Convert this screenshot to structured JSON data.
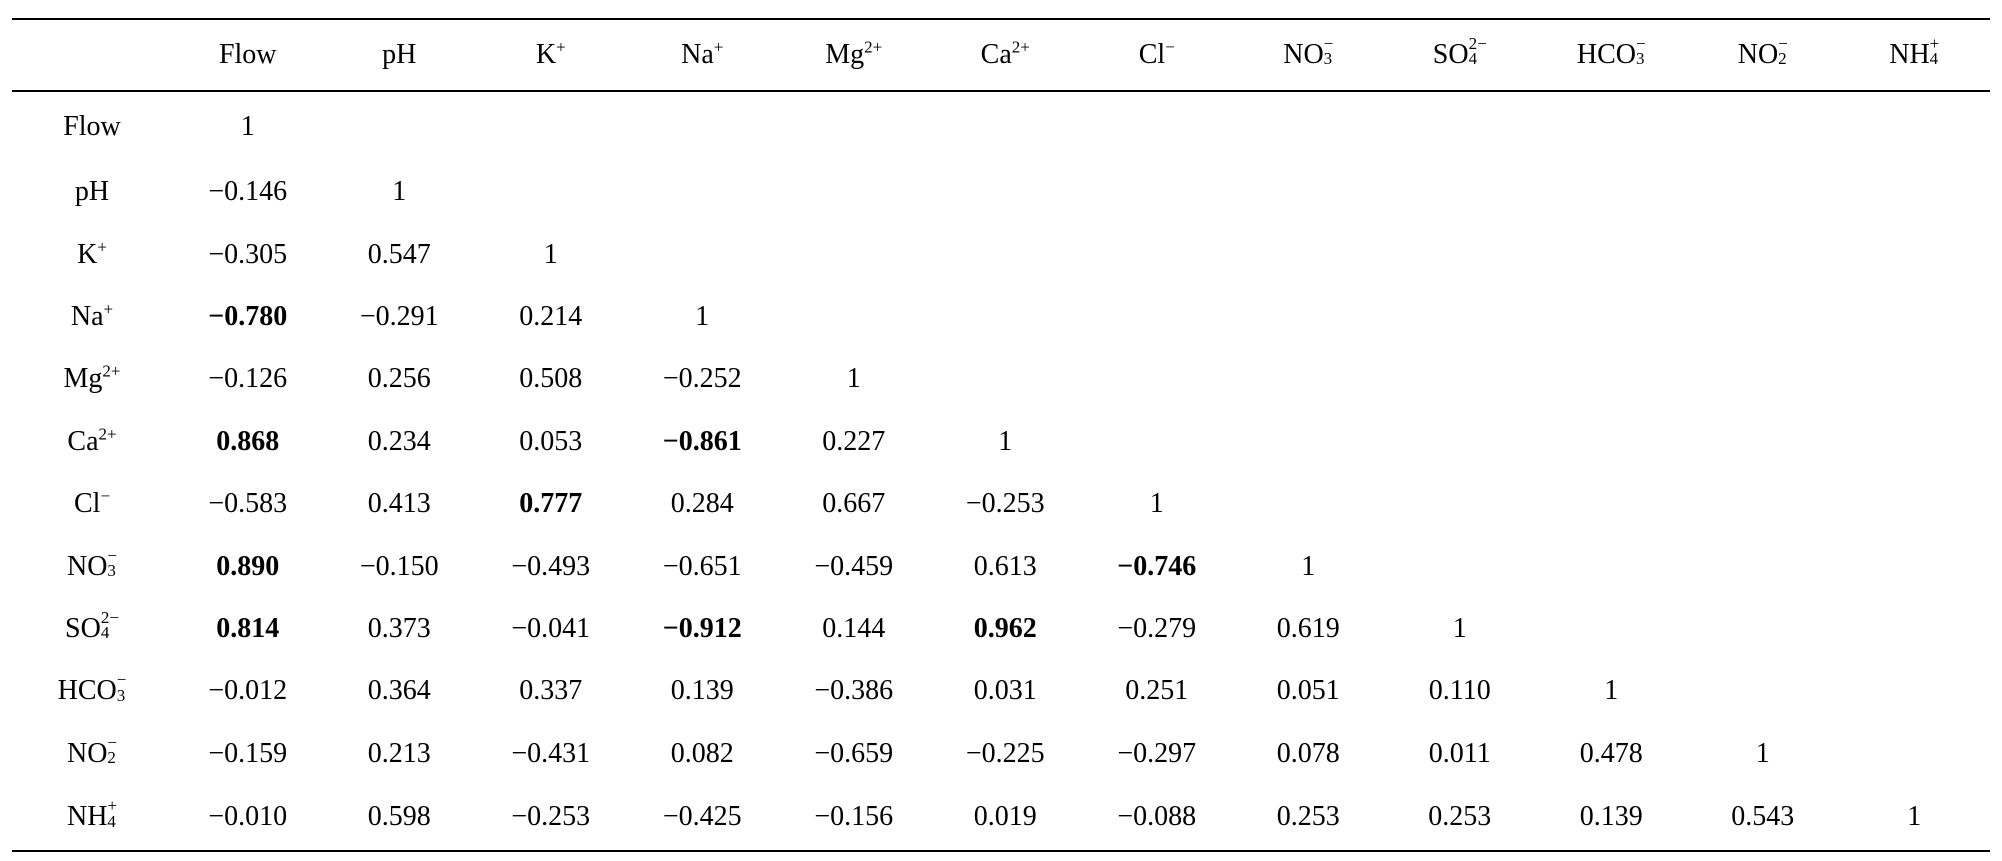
{
  "columns": [
    "Flow",
    "pH",
    "K+",
    "Na+",
    "Mg2+",
    "Ca2+",
    "Cl−",
    "NO3−",
    "SO42−",
    "HCO3−",
    "NO2−",
    "NH4+"
  ],
  "chem": {
    "Flow": {
      "base": "Flow",
      "sup": "",
      "sub": ""
    },
    "pH": {
      "base": "pH",
      "sup": "",
      "sub": ""
    },
    "K+": {
      "base": "K",
      "sup": "+",
      "sub": ""
    },
    "Na+": {
      "base": "Na",
      "sup": "+",
      "sub": ""
    },
    "Mg2+": {
      "base": "Mg",
      "sup": "2+",
      "sub": ""
    },
    "Ca2+": {
      "base": "Ca",
      "sup": "2+",
      "sub": ""
    },
    "Cl−": {
      "base": "Cl",
      "sup": "−",
      "sub": ""
    },
    "NO3−": {
      "base": "NO",
      "sup": "−",
      "sub": "3"
    },
    "SO42−": {
      "base": "SO",
      "sup": "2−",
      "sub": "4"
    },
    "HCO3−": {
      "base": "HCO",
      "sup": "−",
      "sub": "3"
    },
    "NO2−": {
      "base": "NO",
      "sup": "−",
      "sub": "2"
    },
    "NH4+": {
      "base": "NH",
      "sup": "+",
      "sub": "4"
    }
  },
  "rows": [
    {
      "label": "Flow",
      "cells": [
        [
          "1",
          false
        ]
      ]
    },
    {
      "label": "pH",
      "cells": [
        [
          "−0.146",
          false
        ],
        [
          "1",
          false
        ]
      ]
    },
    {
      "label": "K+",
      "cells": [
        [
          "−0.305",
          false
        ],
        [
          "0.547",
          false
        ],
        [
          "1",
          false
        ]
      ]
    },
    {
      "label": "Na+",
      "cells": [
        [
          "−0.780",
          true
        ],
        [
          "−0.291",
          false
        ],
        [
          "0.214",
          false
        ],
        [
          "1",
          false
        ]
      ]
    },
    {
      "label": "Mg2+",
      "cells": [
        [
          "−0.126",
          false
        ],
        [
          "0.256",
          false
        ],
        [
          "0.508",
          false
        ],
        [
          "−0.252",
          false
        ],
        [
          "1",
          false
        ]
      ]
    },
    {
      "label": "Ca2+",
      "cells": [
        [
          "0.868",
          true
        ],
        [
          "0.234",
          false
        ],
        [
          "0.053",
          false
        ],
        [
          "−0.861",
          true
        ],
        [
          "0.227",
          false
        ],
        [
          "1",
          false
        ]
      ]
    },
    {
      "label": "Cl−",
      "cells": [
        [
          "−0.583",
          false
        ],
        [
          "0.413",
          false
        ],
        [
          "0.777",
          true
        ],
        [
          "0.284",
          false
        ],
        [
          "0.667",
          false
        ],
        [
          "−0.253",
          false
        ],
        [
          "1",
          false
        ]
      ]
    },
    {
      "label": "NO3−",
      "cells": [
        [
          "0.890",
          true
        ],
        [
          "−0.150",
          false
        ],
        [
          "−0.493",
          false
        ],
        [
          "−0.651",
          false
        ],
        [
          "−0.459",
          false
        ],
        [
          "0.613",
          false
        ],
        [
          "−0.746",
          true
        ],
        [
          "1",
          false
        ]
      ]
    },
    {
      "label": "SO42−",
      "cells": [
        [
          "0.814",
          true
        ],
        [
          "0.373",
          false
        ],
        [
          "−0.041",
          false
        ],
        [
          "−0.912",
          true
        ],
        [
          "0.144",
          false
        ],
        [
          "0.962",
          true
        ],
        [
          "−0.279",
          false
        ],
        [
          "0.619",
          false
        ],
        [
          "1",
          false
        ]
      ]
    },
    {
      "label": "HCO3−",
      "cells": [
        [
          "−0.012",
          false
        ],
        [
          "0.364",
          false
        ],
        [
          "0.337",
          false
        ],
        [
          "0.139",
          false
        ],
        [
          "−0.386",
          false
        ],
        [
          "0.031",
          false
        ],
        [
          "0.251",
          false
        ],
        [
          "0.051",
          false
        ],
        [
          "0.110",
          false
        ],
        [
          "1",
          false
        ]
      ]
    },
    {
      "label": "NO2−",
      "cells": [
        [
          "−0.159",
          false
        ],
        [
          "0.213",
          false
        ],
        [
          "−0.431",
          false
        ],
        [
          "0.082",
          false
        ],
        [
          "−0.659",
          false
        ],
        [
          "−0.225",
          false
        ],
        [
          "−0.297",
          false
        ],
        [
          "0.078",
          false
        ],
        [
          "0.011",
          false
        ],
        [
          "0.478",
          false
        ],
        [
          "1",
          false
        ]
      ]
    },
    {
      "label": "NH4+",
      "cells": [
        [
          "−0.010",
          false
        ],
        [
          "0.598",
          false
        ],
        [
          "−0.253",
          false
        ],
        [
          "−0.425",
          false
        ],
        [
          "−0.156",
          false
        ],
        [
          "0.019",
          false
        ],
        [
          "−0.088",
          false
        ],
        [
          "0.253",
          false
        ],
        [
          "0.253",
          false
        ],
        [
          "0.139",
          false
        ],
        [
          "0.543",
          false
        ],
        [
          "1",
          false
        ]
      ]
    }
  ]
}
